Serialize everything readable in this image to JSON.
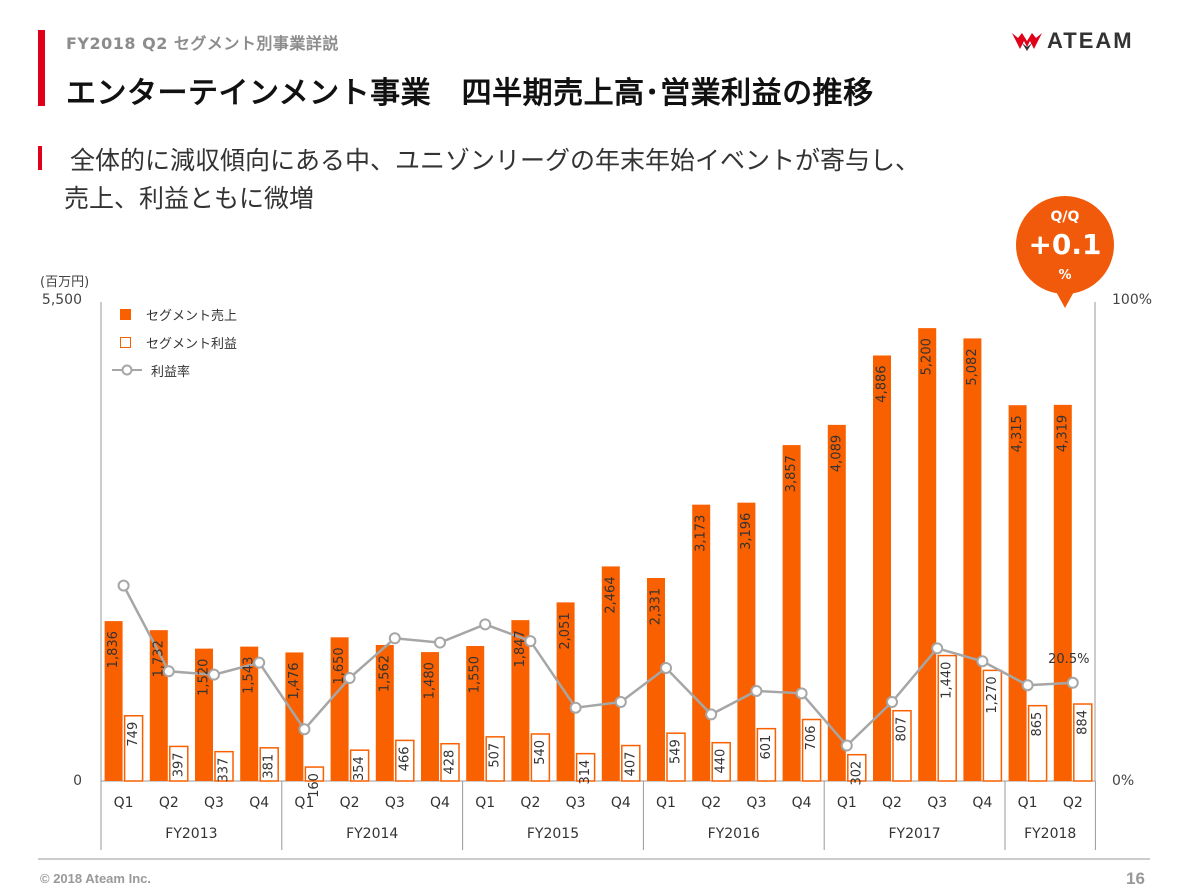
{
  "header": {
    "subhead": "FY2018 Q2 セグメント別事業詳説",
    "title": "エンターテインメント事業　四半期売上高･営業利益の推移",
    "logo_text": "ATEAM"
  },
  "lead": {
    "line1": "全体的に減収傾向にある中、ユニゾンリーグの年末年始イベントが寄与し、",
    "line2": "売上、利益ともに微増"
  },
  "badge": {
    "label": "Q/Q",
    "value": "+0.1",
    "unit": "%"
  },
  "colors": {
    "accent_red": "#e0001a",
    "bar_orange": "#f96000",
    "line_gray": "#a6a6a6",
    "badge_orange": "#f05a0a"
  },
  "chart_data": {
    "type": "bar",
    "unit_label": "(百万円)",
    "y_left_ticks": [
      "5,500",
      "0"
    ],
    "y_right_ticks": [
      "100%",
      "0%"
    ],
    "ylim": [
      0,
      5500
    ],
    "y2lim": [
      0,
      100
    ],
    "legend_placement": "top-left",
    "categories": [
      "Q1",
      "Q2",
      "Q3",
      "Q4",
      "Q1",
      "Q2",
      "Q3",
      "Q4",
      "Q1",
      "Q2",
      "Q3",
      "Q4",
      "Q1",
      "Q2",
      "Q3",
      "Q4",
      "Q1",
      "Q2",
      "Q3",
      "Q4",
      "Q1",
      "Q2"
    ],
    "groups": [
      "FY2013",
      "FY2014",
      "FY2015",
      "FY2016",
      "FY2017",
      "FY2018"
    ],
    "group_sizes": [
      4,
      4,
      4,
      4,
      4,
      2
    ],
    "series": [
      {
        "name": "セグメント売上",
        "kind": "bar-filled",
        "values": [
          1836,
          1732,
          1520,
          1543,
          1476,
          1650,
          1562,
          1480,
          1550,
          1847,
          2051,
          2464,
          2331,
          3173,
          3196,
          3857,
          4089,
          4886,
          5200,
          5082,
          4315,
          4319
        ],
        "labels": [
          "1,836",
          "1,732",
          "1,520",
          "1,543",
          "1,476",
          "1,650",
          "1,562",
          "1,480",
          "1,550",
          "1,847",
          "2,051",
          "2,464",
          "2,331",
          "3,173",
          "3,196",
          "3,857",
          "4,089",
          "4,886",
          "5,200",
          "5,082",
          "4,315",
          "4,319"
        ]
      },
      {
        "name": "セグメント利益",
        "kind": "bar-hollow",
        "values": [
          749,
          397,
          337,
          381,
          160,
          354,
          466,
          428,
          507,
          540,
          314,
          407,
          549,
          440,
          601,
          706,
          302,
          807,
          1440,
          1270,
          865,
          884
        ],
        "labels": [
          "749",
          "397",
          "337",
          "381",
          "160",
          "354",
          "466",
          "428",
          "507",
          "540",
          "314",
          "407",
          "549",
          "440",
          "601",
          "706",
          "302",
          "807",
          "1,440",
          "1,270",
          "865",
          "884"
        ]
      },
      {
        "name": "利益率",
        "kind": "line",
        "axis": "right",
        "values": [
          40.8,
          22.9,
          22.2,
          24.7,
          10.8,
          21.5,
          29.8,
          28.9,
          32.7,
          29.2,
          15.3,
          16.5,
          23.6,
          13.9,
          18.8,
          18.3,
          7.4,
          16.5,
          27.7,
          25.0,
          20.0,
          20.5
        ],
        "annotation": {
          "index": 21,
          "text": "20.5%"
        }
      }
    ]
  },
  "footer": {
    "copyright": "© 2018 Ateam Inc.",
    "page_number": "16"
  }
}
